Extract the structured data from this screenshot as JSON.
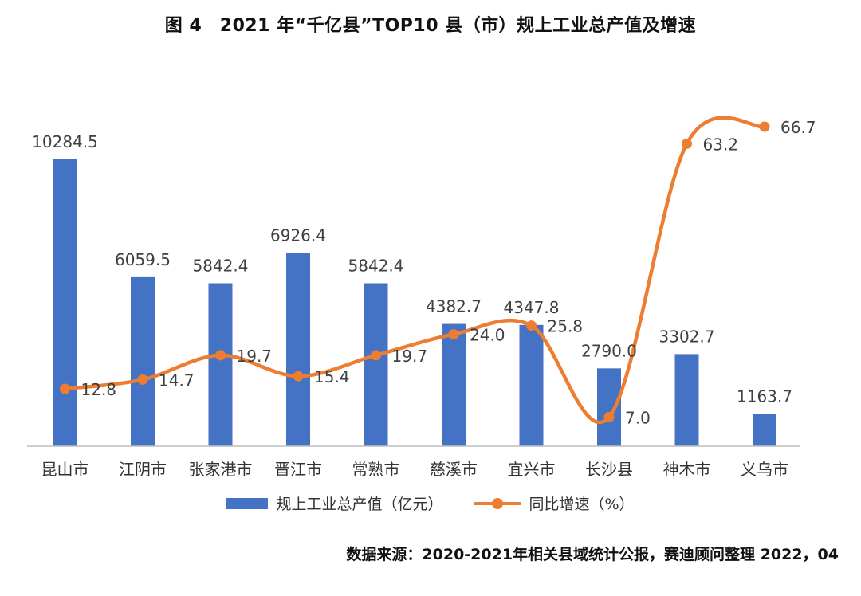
{
  "chart_data": {
    "type": "bar",
    "title": "图 4　2021 年“千亿县”TOP10 县（市）规上工业总产值及增速",
    "categories": [
      "昆山市",
      "江阴市",
      "张家港市",
      "晋江市",
      "常熟市",
      "慈溪市",
      "宜兴市",
      "长沙县",
      "神木市",
      "义乌市"
    ],
    "series": [
      {
        "name": "规上工业总产值（亿元）",
        "type": "bar",
        "axis": "left",
        "color": "#4472C4",
        "values": [
          10284.5,
          6059.5,
          5842.4,
          6926.4,
          5842.4,
          4382.7,
          4347.8,
          2790.0,
          3302.7,
          1163.7
        ],
        "labels": [
          "10284.5",
          "6059.5",
          "5842.4",
          "6926.4",
          "5842.4",
          "4382.7",
          "4347.8",
          "2790.0",
          "3302.7",
          "1163.7"
        ]
      },
      {
        "name": "同比增速（%）",
        "type": "line",
        "smooth": true,
        "axis": "right",
        "color": "#ED7D31",
        "values": [
          12.8,
          14.7,
          19.7,
          15.4,
          19.7,
          24.0,
          25.8,
          7.0,
          63.2,
          66.7
        ],
        "labels": [
          "12.8",
          "14.7",
          "19.7",
          "15.4",
          "19.7",
          "24.0",
          "25.8",
          "7.0",
          "63.2",
          "66.7"
        ]
      }
    ],
    "ylim_left": [
      0,
      11000
    ],
    "ylim_right": [
      0,
      70
    ],
    "axes_visible": false,
    "grid": false,
    "legend_position": "bottom"
  },
  "source_note": "数据来源：2020-2021年相关县域统计公报，赛迪顾问整理  2022，04"
}
